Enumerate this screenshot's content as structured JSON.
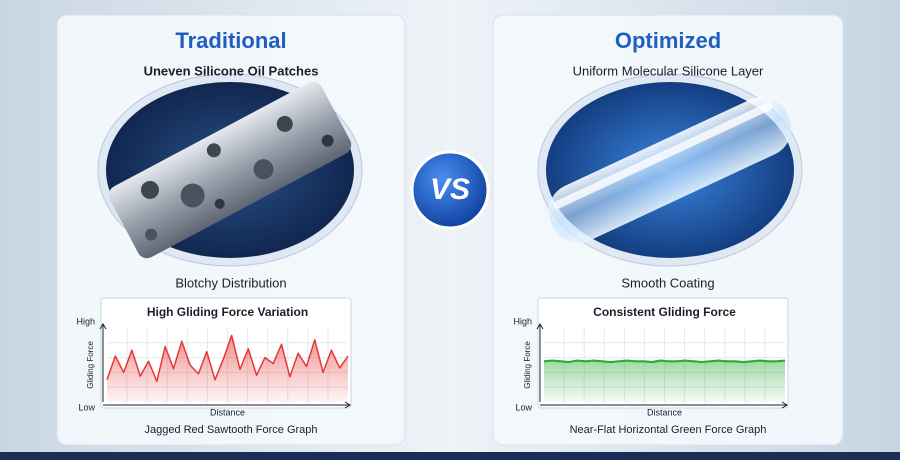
{
  "panels": [
    {
      "heading": "Traditional",
      "subheading": "Uneven Silicone Oil Patches",
      "image_caption": "Blotchy Distribution",
      "chart_caption": "Jagged Red Sawtooth Force Graph"
    },
    {
      "heading": "Optimized",
      "subheading": "Uniform Molecular Silicone Layer",
      "image_caption": "Smooth Coating",
      "chart_caption": "Near-Flat Horizontal Green Force Graph"
    }
  ],
  "vs": "VS",
  "chart_data": [
    {
      "type": "line",
      "title": "High Gliding Force Variation",
      "ylabel": "Gliding Force",
      "xlabel": "Distance",
      "area": true,
      "grid": true,
      "color": "#e53935",
      "ylim": [
        0,
        100
      ],
      "yticks": [
        {
          "value": 0,
          "label": "Low"
        },
        {
          "value": 100,
          "label": "High"
        }
      ],
      "values": [
        30,
        62,
        40,
        70,
        35,
        55,
        28,
        75,
        45,
        82,
        50,
        38,
        68,
        30,
        58,
        90,
        44,
        72,
        36,
        60,
        52,
        78,
        34,
        66,
        48,
        84,
        40,
        70,
        46,
        62
      ]
    },
    {
      "type": "line",
      "title": "Consistent Gliding Force",
      "ylabel": "Gliding Force",
      "xlabel": "Distance",
      "area": true,
      "grid": true,
      "color": "#2eaa3a",
      "ylim": [
        0,
        100
      ],
      "yticks": [
        {
          "value": 0,
          "label": "Low"
        },
        {
          "value": 100,
          "label": "High"
        }
      ],
      "values": [
        55,
        56,
        55,
        54,
        56,
        55,
        56,
        55,
        54,
        55,
        56,
        55,
        55,
        54,
        56,
        55,
        55,
        56,
        55,
        54,
        55,
        56,
        55,
        55,
        54,
        55,
        56,
        55,
        55,
        56
      ]
    }
  ]
}
